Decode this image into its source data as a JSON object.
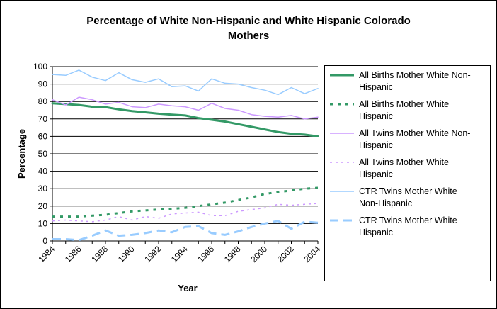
{
  "chart_data": {
    "type": "line",
    "title": [
      "Percentage of White Non-Hispanic and White Hispanic Colorado",
      "Mothers"
    ],
    "xlabel": "Year",
    "ylabel": "Percentage",
    "ylim": [
      0,
      100
    ],
    "yticks": [
      0,
      10,
      20,
      30,
      40,
      50,
      60,
      70,
      80,
      90,
      100
    ],
    "xlim": [
      1984,
      2004
    ],
    "xticks": [
      1984,
      1986,
      1988,
      1990,
      1992,
      1994,
      1996,
      1998,
      2000,
      2002,
      2004
    ],
    "grid": "horizontal",
    "legend": "right",
    "x": [
      1984,
      1985,
      1986,
      1987,
      1988,
      1989,
      1990,
      1991,
      1992,
      1993,
      1994,
      1995,
      1996,
      1997,
      1998,
      1999,
      2000,
      2001,
      2002,
      2003,
      2004
    ],
    "series": [
      {
        "name": "All Births Mother White Non-Hispanic",
        "legend_lines": [
          "All Births Mother White Non-",
          "Hispanic"
        ],
        "color": "#339966",
        "style": "solid",
        "width": 3,
        "values": [
          79,
          78.5,
          78,
          77,
          76.8,
          75.5,
          74.5,
          73.8,
          73,
          72.5,
          72,
          70.5,
          69.5,
          68.5,
          67,
          65.5,
          64,
          62.5,
          61.5,
          61,
          60
        ]
      },
      {
        "name": "All Births Mother White Hispanic",
        "legend_lines": [
          "All Births Mother White",
          "Hispanic"
        ],
        "color": "#339966",
        "style": "dotted",
        "width": 3,
        "values": [
          14,
          14,
          14,
          14.5,
          15,
          16,
          17,
          17.5,
          18,
          18.5,
          19,
          20,
          21,
          22,
          23.5,
          25,
          27,
          28,
          29,
          30,
          30.5
        ]
      },
      {
        "name": "All Twins Mother White Non-Hispanic",
        "legend_lines": [
          "All Twins Mother White Non-",
          "Hispanic"
        ],
        "color": "#cc99ff",
        "style": "solid",
        "width": 1.5,
        "values": [
          81,
          78,
          82.5,
          81,
          78.5,
          79.5,
          77,
          76.5,
          78.5,
          77.5,
          77,
          75,
          79,
          76,
          75,
          72.5,
          71.5,
          71,
          72,
          70,
          71
        ]
      },
      {
        "name": "All Twins Mother White Hispanic",
        "legend_lines": [
          "All Twins Mother White",
          "Hispanic"
        ],
        "color": "#cc99ff",
        "style": "dotted",
        "width": 1.5,
        "values": [
          11.5,
          12,
          11.5,
          11,
          12,
          14,
          12,
          14,
          13,
          15.5,
          16,
          16.5,
          14.5,
          14.5,
          17,
          18,
          19,
          21,
          20.5,
          21,
          21.5
        ]
      },
      {
        "name": "CTR Twins Mother White Non-Hispanic",
        "legend_lines": [
          "CTR Twins Mother White",
          "Non-Hispanic"
        ],
        "color": "#99ccff",
        "style": "solid",
        "width": 1.5,
        "values": [
          95.5,
          95,
          98,
          94,
          92,
          96.5,
          92.5,
          91,
          93,
          88.5,
          89,
          86,
          93,
          90.5,
          90,
          88,
          86.5,
          84,
          88,
          84.5,
          87.5
        ]
      },
      {
        "name": "CTR Twins Mother White Hispanic",
        "legend_lines": [
          "CTR Twins Mother White",
          "Hispanic"
        ],
        "color": "#99ccff",
        "style": "dashed",
        "width": 3,
        "values": [
          1,
          1,
          0.5,
          3,
          6,
          3,
          3.5,
          4.5,
          6,
          5,
          8,
          8.5,
          4.5,
          3.5,
          5.5,
          8,
          10,
          11.5,
          7,
          11,
          10.5
        ]
      }
    ]
  }
}
